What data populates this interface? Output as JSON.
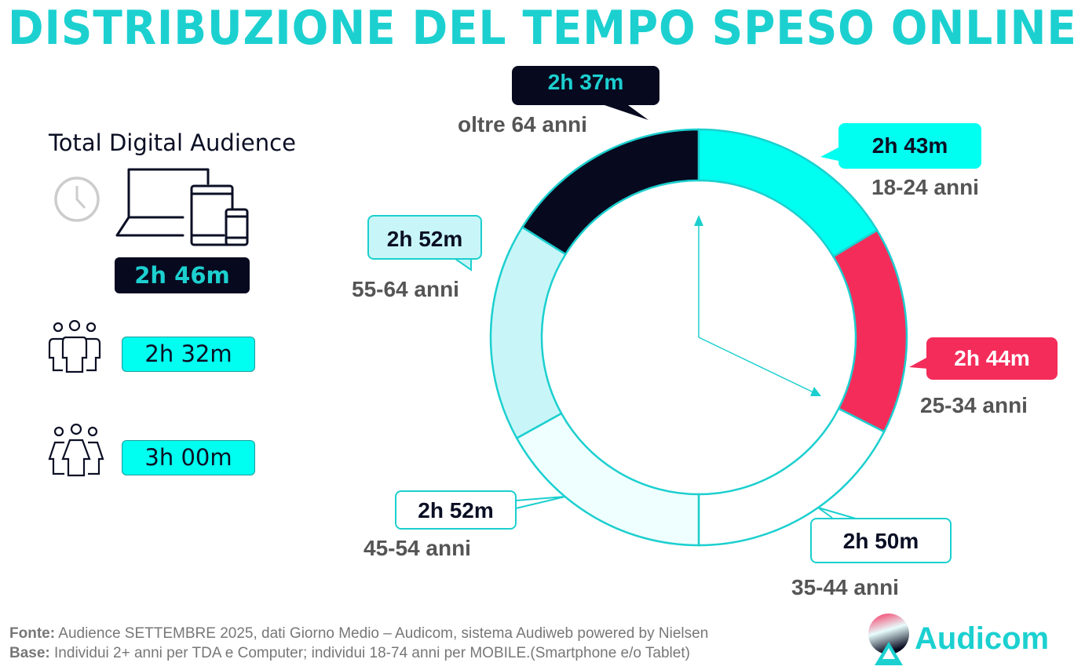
{
  "title": "DISTRIBUZIONE DEL TEMPO SPESO ONLINE",
  "left_panel": {
    "label": "Total Digital Audience",
    "total": "2h 46m",
    "male": "2h 32m",
    "female": "3h 00m",
    "icons": [
      "clock-icon",
      "devices-icon",
      "men-group-icon",
      "women-group-icon"
    ]
  },
  "chart_data": {
    "type": "pie",
    "donut": true,
    "categories": [
      "18-24 anni",
      "25-34 anni",
      "35-44 anni",
      "45-54 anni",
      "55-64 anni",
      "oltre 64 anni"
    ],
    "labels": [
      "2h 43m",
      "2h 44m",
      "2h 50m",
      "2h 52m",
      "2h 52m",
      "2h 37m"
    ],
    "values_minutes": [
      163,
      164,
      170,
      172,
      172,
      157
    ],
    "colors": [
      "#00fff0",
      "#f42c5a",
      "#ffffff",
      "#effefe",
      "#c8f6f8",
      "#070a1f"
    ],
    "border_color": "#1ccfcf"
  },
  "footer": {
    "fonte_label": "Fonte:",
    "fonte_text": " Audience SETTEMBRE 2025, dati Giorno Medio – Audicom, sistema Audiweb powered by Nielsen",
    "base_label": "Base:",
    "base_text": " Individui 2+ anni per TDA e Computer; individui 18-74 anni per MOBILE.(Smartphone e/o Tablet)"
  },
  "logo": {
    "text": "Audicom"
  }
}
